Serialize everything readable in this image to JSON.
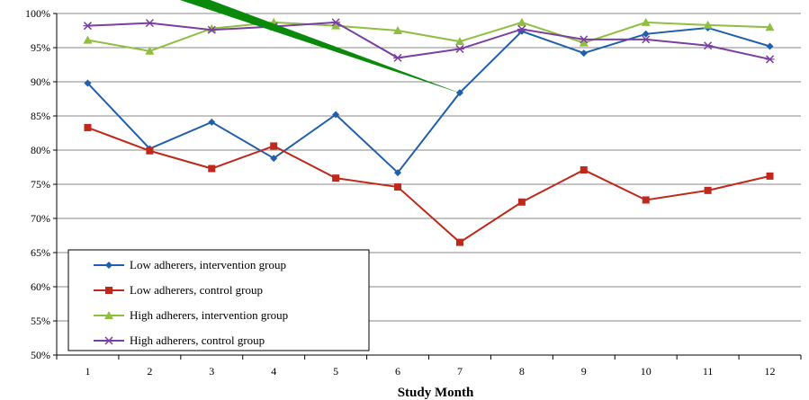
{
  "chart_data": {
    "type": "line",
    "title": "",
    "xlabel": "Study Month",
    "ylabel": "",
    "x": [
      1,
      2,
      3,
      4,
      5,
      6,
      7,
      8,
      9,
      10,
      11,
      12
    ],
    "x_tick_labels": [
      "1",
      "2",
      "3",
      "4",
      "5",
      "6",
      "7",
      "8",
      "9",
      "10",
      "11",
      "12"
    ],
    "ylim": [
      0.5,
      1.0
    ],
    "y_ticks": [
      0.5,
      0.55,
      0.6,
      0.65,
      0.7,
      0.75,
      0.8,
      0.85,
      0.9,
      0.95,
      1.0
    ],
    "y_tick_labels": [
      "50%",
      "55%",
      "60%",
      "65%",
      "70%",
      "75%",
      "80%",
      "85%",
      "90%",
      "95%",
      "100%"
    ],
    "grid": "horizontal",
    "legend_position": "bottom-left",
    "series": [
      {
        "name": "Low adherers, intervention group",
        "color": "#1f5fad",
        "marker": "diamond",
        "values": [
          0.898,
          0.802,
          0.841,
          0.788,
          0.852,
          0.767,
          0.884,
          0.974,
          0.942,
          0.97,
          0.979,
          0.952
        ]
      },
      {
        "name": "Low adherers, control group",
        "color": "#c0281b",
        "marker": "square",
        "values": [
          0.833,
          0.799,
          0.773,
          0.806,
          0.759,
          0.746,
          0.665,
          0.724,
          0.771,
          0.727,
          0.741,
          0.762
        ]
      },
      {
        "name": "High adherers, intervention group",
        "color": "#8fbf3f",
        "marker": "triangle",
        "values": [
          0.961,
          0.945,
          0.978,
          0.987,
          0.982,
          0.975,
          0.959,
          0.987,
          0.957,
          0.987,
          0.983,
          0.98
        ]
      },
      {
        "name": "High adherers, control group",
        "color": "#7b3fa0",
        "marker": "x",
        "values": [
          0.982,
          0.986,
          0.976,
          0.981,
          0.987,
          0.935,
          0.948,
          0.977,
          0.962,
          0.962,
          0.953,
          0.933
        ]
      }
    ],
    "annotation": {
      "type": "arrow",
      "color": "#0a8a0a"
    }
  }
}
